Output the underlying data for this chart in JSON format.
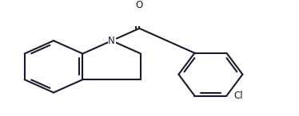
{
  "background_color": "#ffffff",
  "line_color": "#1a1a2e",
  "line_width": 1.5,
  "text_color": "#1a1a2e",
  "font_size": 8.5,
  "figsize": [
    3.74,
    1.46
  ],
  "dpi": 100,
  "xlim": [
    0,
    374
  ],
  "ylim": [
    0,
    146
  ]
}
